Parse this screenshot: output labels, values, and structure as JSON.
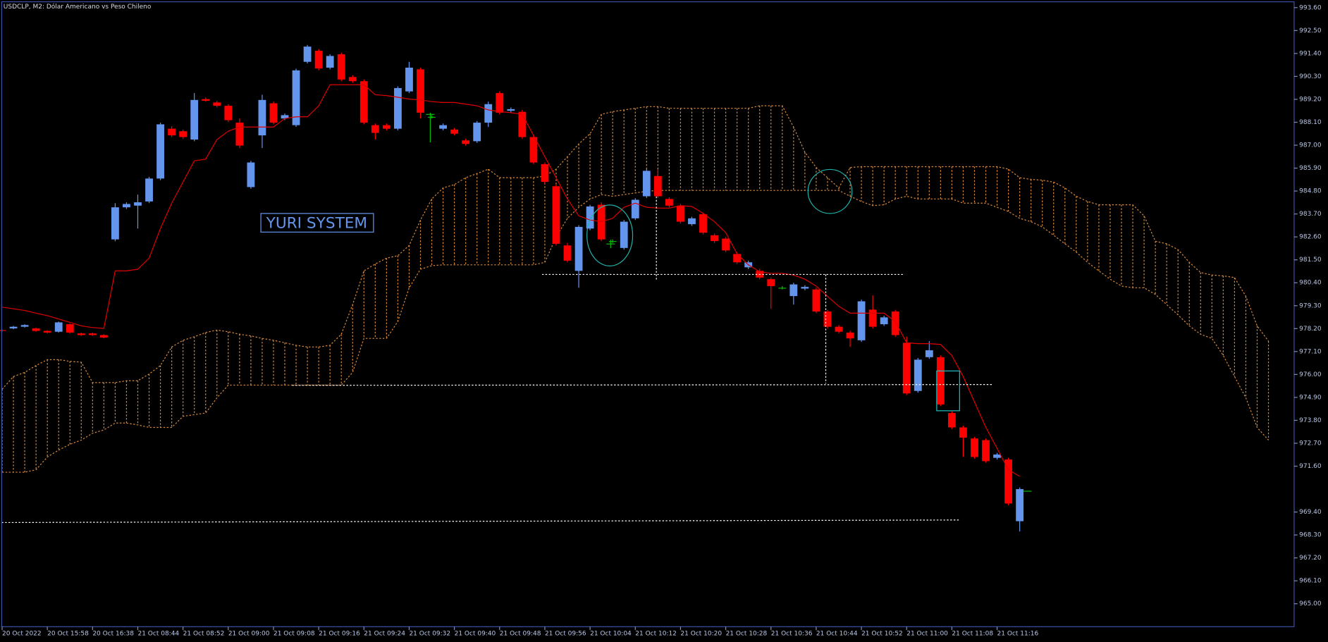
{
  "chart_data": {
    "type": "candlestick",
    "title": "USDCLP, M2:  Dólar Americano vs Peso Chileno",
    "annotation": "YURI SYSTEM",
    "categories": [
      "20 Oct 2022",
      null,
      null,
      null,
      "20 Oct 15:58",
      null,
      null,
      null,
      "20 Oct 16:38",
      null,
      null,
      null,
      "21 Oct 08:44",
      null,
      null,
      null,
      "21 Oct 08:52",
      null,
      null,
      null,
      "21 Oct 09:00",
      null,
      null,
      null,
      "21 Oct 09:08",
      null,
      null,
      null,
      "21 Oct 09:16",
      null,
      null,
      null,
      "21 Oct 09:24",
      null,
      null,
      null,
      "21 Oct 09:32",
      null,
      null,
      null,
      "21 Oct 09:40",
      null,
      null,
      null,
      "21 Oct 09:48",
      null,
      null,
      null,
      "21 Oct 09:56",
      null,
      null,
      null,
      "21 Oct 10:04",
      null,
      null,
      null,
      "21 Oct 10:12",
      null,
      null,
      null,
      "21 Oct 10:20",
      null,
      null,
      null,
      "21 Oct 10:28",
      null,
      null,
      null,
      "21 Oct 10:36",
      null,
      null,
      null,
      "21 Oct 10:44",
      null,
      null,
      null,
      "21 Oct 10:52",
      null,
      null,
      null,
      "21 Oct 11:00",
      null,
      null,
      null,
      "21 Oct 11:08",
      null,
      null,
      null,
      "21 Oct 11:16",
      null,
      null
    ],
    "open": [
      978.13,
      978.21,
      978.29,
      978.21,
      978.09,
      978.05,
      978.41,
      977.97,
      977.97,
      977.89,
      982.48,
      984.02,
      984.1,
      984.3,
      985.4,
      987.79,
      987.67,
      987.27,
      989.21,
      989.05,
      988.89,
      988.08,
      984.99,
      987.47,
      989.01,
      988.28,
      987.96,
      991.0,
      991.53,
      990.72,
      991.36,
      990.27,
      990.07,
      987.96,
      987.96,
      987.79,
      989.58,
      990.64,
      988.36,
      987.79,
      987.75,
      987.23,
      987.19,
      988.08,
      989.5,
      988.65,
      988.6,
      987.39,
      986.09,
      985.03,
      982.19,
      980.97,
      983.0,
      984.14,
      982.4,
      982.07,
      983.49,
      984.55,
      985.52,
      984.42,
      984.1,
      983.21,
      983.69,
      982.68,
      982.52,
      981.78,
      981.14,
      980.97,
      980.57,
      980.16,
      979.76,
      980.12,
      980.08,
      979.02,
      978.29,
      978.01,
      977.64,
      979.11,
      978.41,
      979.02,
      977.52,
      975.21,
      976.83,
      976.83,
      974.15,
      973.46,
      972.93,
      972.85,
      972.0,
      971.92,
      968.96
    ],
    "high": [
      978.17,
      978.33,
      978.41,
      978.25,
      978.13,
      978.54,
      978.45,
      978.01,
      978.01,
      977.93,
      984.22,
      984.26,
      984.63,
      985.48,
      988.08,
      987.91,
      987.75,
      989.5,
      989.29,
      989.13,
      988.97,
      988.28,
      986.25,
      989.42,
      989.09,
      988.52,
      990.67,
      991.81,
      991.61,
      991.36,
      991.44,
      990.35,
      990.15,
      988.04,
      988.04,
      989.82,
      991.0,
      990.72,
      988.44,
      988.04,
      987.83,
      987.31,
      988.16,
      989.09,
      989.58,
      988.81,
      988.69,
      987.47,
      986.17,
      985.11,
      982.31,
      983.16,
      984.14,
      984.26,
      982.48,
      983.41,
      984.46,
      985.85,
      985.85,
      984.5,
      984.18,
      983.57,
      983.77,
      982.76,
      982.6,
      981.87,
      981.46,
      981.06,
      980.65,
      980.24,
      980.4,
      980.28,
      980.16,
      979.1,
      978.37,
      978.09,
      979.59,
      979.79,
      978.82,
      979.1,
      977.81,
      976.79,
      977.6,
      976.91,
      974.23,
      973.54,
      973.01,
      972.93,
      972.24,
      972.0,
      970.58
    ],
    "low": [
      978.05,
      978.17,
      978.25,
      978.05,
      977.97,
      978.01,
      977.97,
      977.85,
      977.85,
      977.73,
      982.39,
      983.94,
      983.0,
      984.22,
      985.32,
      987.39,
      987.31,
      987.19,
      989.09,
      988.81,
      988.12,
      986.86,
      984.91,
      986.86,
      988.0,
      988.2,
      987.88,
      990.92,
      990.6,
      990.64,
      990.07,
      989.99,
      988.0,
      987.27,
      987.71,
      987.71,
      989.5,
      988.28,
      988.28,
      987.71,
      987.47,
      986.98,
      987.11,
      987.87,
      988.48,
      988.56,
      987.31,
      986.09,
      985.16,
      982.19,
      981.38,
      980.16,
      982.92,
      982.4,
      982.31,
      981.99,
      983.41,
      984.47,
      984.47,
      984.02,
      983.25,
      983.13,
      982.72,
      982.31,
      981.87,
      981.3,
      981.06,
      980.57,
      979.15,
      980.08,
      979.35,
      980.04,
      978.94,
      978.21,
      977.97,
      977.32,
      977.56,
      978.21,
      978.33,
      977.81,
      975.01,
      975.13,
      976.75,
      974.48,
      973.38,
      972.04,
      971.96,
      971.76,
      971.92,
      969.73,
      968.47
    ],
    "close": [
      978.09,
      978.29,
      978.37,
      978.09,
      978.01,
      978.5,
      978.01,
      977.89,
      977.89,
      977.77,
      984.02,
      984.18,
      984.26,
      985.4,
      988.0,
      987.47,
      987.39,
      989.17,
      989.13,
      988.89,
      988.2,
      986.98,
      986.17,
      989.17,
      988.08,
      988.44,
      990.59,
      991.73,
      990.68,
      991.28,
      990.15,
      990.07,
      988.08,
      987.59,
      987.79,
      989.74,
      990.72,
      988.56,
      988.36,
      987.96,
      987.55,
      987.06,
      988.08,
      988.97,
      988.56,
      988.73,
      987.39,
      986.17,
      985.24,
      982.27,
      981.46,
      983.08,
      984.06,
      982.48,
      982.4,
      983.33,
      984.38,
      985.77,
      984.55,
      984.1,
      983.33,
      983.49,
      982.8,
      982.4,
      981.95,
      981.38,
      981.38,
      980.65,
      980.24,
      980.16,
      980.32,
      980.2,
      979.02,
      978.29,
      978.05,
      977.73,
      979.51,
      978.29,
      978.74,
      977.89,
      975.09,
      976.71,
      977.16,
      974.56,
      973.46,
      972.97,
      972.04,
      971.84,
      972.16,
      969.81,
      970.5
    ],
    "up_color": "#6495ed",
    "down_color": "#ff0000",
    "doji_color": "#00c000",
    "line": {
      "color": "#e00000",
      "values": [
        979.23,
        979.15,
        979.07,
        978.94,
        978.82,
        978.66,
        978.5,
        978.33,
        978.25,
        978.21,
        980.97,
        980.97,
        981.05,
        981.58,
        983.0,
        984.22,
        985.23,
        986.25,
        986.33,
        987.27,
        987.67,
        987.87,
        987.87,
        987.87,
        987.87,
        988.28,
        988.36,
        988.36,
        988.89,
        989.9,
        989.9,
        989.9,
        989.9,
        989.42,
        989.38,
        989.3,
        989.21,
        989.17,
        989.09,
        989.05,
        989.05,
        988.97,
        988.89,
        988.69,
        988.61,
        988.56,
        988.48,
        987.47,
        986.45,
        985.44,
        984.42,
        983.61,
        983.41,
        983.33,
        983.49,
        984.02,
        984.22,
        984.02,
        983.98,
        983.98,
        984.1,
        984.06,
        983.73,
        983.33,
        982.8,
        981.79,
        981.26,
        980.93,
        980.85,
        980.85,
        980.77,
        980.57,
        980.24,
        979.75,
        979.27,
        978.94,
        978.94,
        978.94,
        978.94,
        978.54,
        977.52,
        977.48,
        977.48,
        977.44,
        976.91,
        975.9,
        974.68,
        973.47,
        972.45,
        971.43,
        971.11
      ]
    },
    "cloud": {
      "color": "#d8893c",
      "upper": [
        975.29,
        975.9,
        976.1,
        976.43,
        976.71,
        976.71,
        976.63,
        976.59,
        975.61,
        975.61,
        975.61,
        975.7,
        975.7,
        976.02,
        976.43,
        977.32,
        977.64,
        977.81,
        978.01,
        978.13,
        978.05,
        977.93,
        977.85,
        977.73,
        977.64,
        977.52,
        977.4,
        977.32,
        977.32,
        977.4,
        977.93,
        979.35,
        980.97,
        981.3,
        981.58,
        981.7,
        982.19,
        983.41,
        984.42,
        984.95,
        985.11,
        985.44,
        985.64,
        985.85,
        985.44,
        985.44,
        985.44,
        985.44,
        985.52,
        985.85,
        986.45,
        987.06,
        987.55,
        988.48,
        988.61,
        988.69,
        988.77,
        988.85,
        988.85,
        988.77,
        988.77,
        988.77,
        988.77,
        988.77,
        988.77,
        988.77,
        988.77,
        988.89,
        988.89,
        988.89,
        987.87,
        986.66,
        985.93,
        985.44,
        984.95,
        985.93,
        985.97,
        985.97,
        985.97,
        985.97,
        985.97,
        985.97,
        985.97,
        985.97,
        985.97,
        985.97,
        985.97,
        985.97,
        985.97,
        985.85,
        985.44,
        985.36,
        985.32,
        985.23,
        984.95,
        984.55,
        984.3,
        984.14,
        984.14,
        984.14,
        984.14,
        983.61,
        982.39,
        982.27,
        981.99,
        981.38,
        980.89,
        980.77,
        980.73,
        980.65,
        979.75,
        978.33,
        977.6
      ],
      "lower": [
        971.31,
        971.31,
        971.31,
        971.43,
        972.04,
        972.37,
        972.65,
        972.85,
        973.18,
        973.34,
        973.67,
        973.67,
        973.58,
        973.46,
        973.46,
        973.46,
        973.99,
        974.07,
        974.15,
        974.88,
        975.49,
        975.49,
        975.49,
        975.49,
        975.49,
        975.49,
        975.49,
        975.49,
        975.49,
        975.49,
        975.49,
        976.1,
        977.73,
        977.73,
        977.73,
        978.54,
        980.16,
        981.05,
        981.22,
        981.26,
        981.26,
        981.26,
        981.26,
        981.26,
        981.26,
        981.26,
        981.26,
        981.26,
        981.38,
        982.6,
        983.49,
        984.02,
        984.42,
        984.63,
        984.55,
        984.63,
        984.71,
        984.79,
        984.83,
        984.83,
        984.83,
        984.83,
        984.83,
        984.83,
        984.83,
        984.83,
        984.83,
        984.83,
        984.83,
        984.83,
        984.83,
        984.83,
        984.83,
        984.83,
        984.83,
        984.55,
        984.3,
        984.1,
        984.14,
        984.42,
        984.55,
        984.42,
        984.42,
        984.42,
        984.42,
        984.22,
        984.22,
        984.22,
        984.02,
        983.82,
        983.49,
        983.33,
        983.08,
        982.68,
        982.27,
        981.87,
        981.38,
        980.97,
        980.57,
        980.24,
        980.16,
        980.16,
        979.84,
        979.35,
        978.86,
        978.33,
        977.93,
        977.73,
        976.91,
        975.9,
        974.88,
        973.46,
        972.85
      ]
    },
    "ylim": [
      963.9,
      993.88
    ],
    "yticks": [
      {
        "value": 993.6,
        "label": "993.60"
      },
      {
        "value": 992.5,
        "label": "992.50"
      },
      {
        "value": 991.4,
        "label": "991.40"
      },
      {
        "value": 990.3,
        "label": "990.30"
      },
      {
        "value": 989.2,
        "label": "989.20"
      },
      {
        "value": 988.1,
        "label": "988.10"
      },
      {
        "value": 987.0,
        "label": "987.00"
      },
      {
        "value": 985.9,
        "label": "985.90"
      },
      {
        "value": 984.8,
        "label": "984.80"
      },
      {
        "value": 983.7,
        "label": "983.70"
      },
      {
        "value": 982.6,
        "label": "982.60"
      },
      {
        "value": 981.5,
        "label": "981.50"
      },
      {
        "value": 980.4,
        "label": "980.40"
      },
      {
        "value": 979.3,
        "label": "979.30"
      },
      {
        "value": 978.2,
        "label": "978.20"
      },
      {
        "value": 977.1,
        "label": "977.10"
      },
      {
        "value": 976.0,
        "label": "976.00"
      },
      {
        "value": 974.9,
        "label": "974.90"
      },
      {
        "value": 973.8,
        "label": "973.80"
      },
      {
        "value": 972.7,
        "label": "972.70"
      },
      {
        "value": 971.6,
        "label": "971.60"
      },
      {
        "value": 969.4,
        "label": "969.40"
      },
      {
        "value": 968.3,
        "label": "968.30"
      },
      {
        "value": 967.2,
        "label": "967.20"
      },
      {
        "value": 966.1,
        "label": "966.10"
      },
      {
        "value": 965.0,
        "label": "965.00"
      }
    ]
  }
}
